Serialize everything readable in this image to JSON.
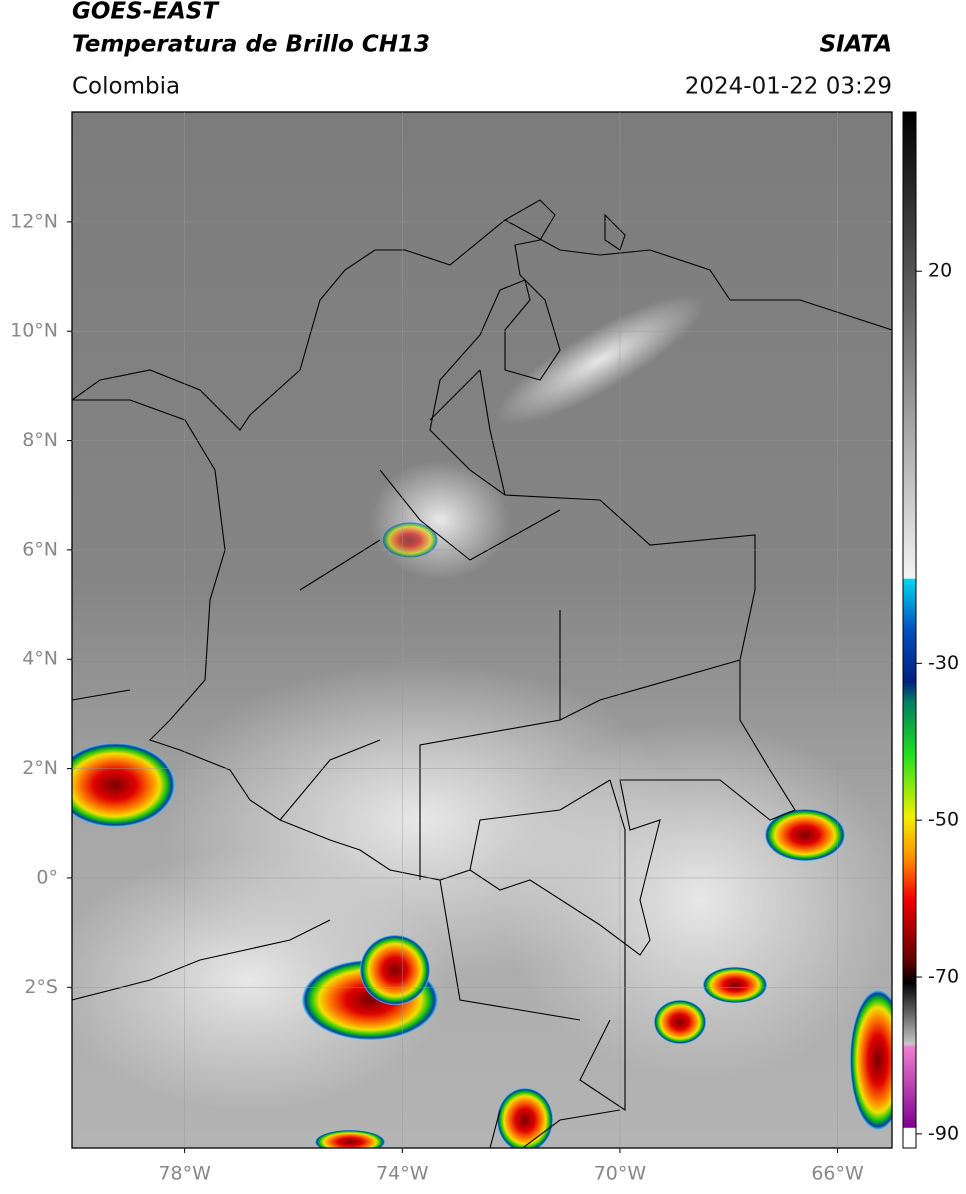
{
  "header": {
    "satellite": "GOES-EAST",
    "product": "Temperatura de Brillo CH13",
    "source": "SIATA",
    "region": "Colombia",
    "datetime": "2024-01-22 03:29"
  },
  "map": {
    "lonlim": [
      -80.07,
      -65.0
    ],
    "latlim": [
      -4.94,
      14.01
    ],
    "lat_ticks": [
      {
        "value": 12,
        "label": "12°N"
      },
      {
        "value": 10,
        "label": "10°N"
      },
      {
        "value": 8,
        "label": "8°N"
      },
      {
        "value": 6,
        "label": "6°N"
      },
      {
        "value": 4,
        "label": "4°N"
      },
      {
        "value": 2,
        "label": "2°N"
      },
      {
        "value": 0,
        "label": "0°"
      },
      {
        "value": -2,
        "label": "2°S"
      }
    ],
    "lon_ticks": [
      {
        "value": -78,
        "label": "78°W"
      },
      {
        "value": -74,
        "label": "74°W"
      },
      {
        "value": -70,
        "label": "70°W"
      },
      {
        "value": -66,
        "label": "66°W"
      }
    ],
    "grid": true
  },
  "colorbar": {
    "lim": [
      -91.8,
      40.3
    ],
    "ticks": [
      20,
      -30,
      -50,
      -70,
      -90
    ]
  }
}
